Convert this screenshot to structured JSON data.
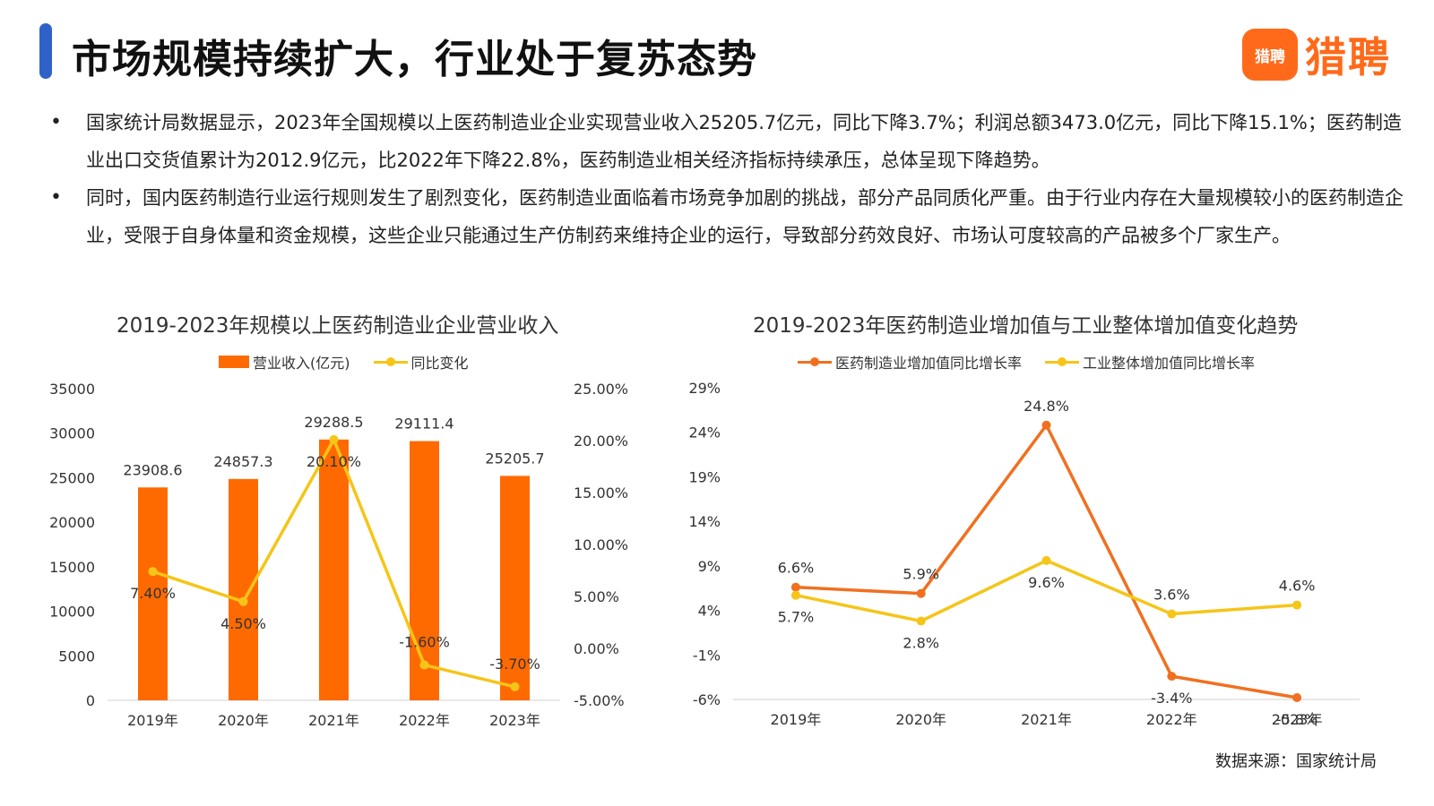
{
  "header": {
    "title": "市场规模持续扩大，行业处于复苏态势",
    "logo_box_text": "猎聘",
    "logo_text": "猎聘"
  },
  "bullets": [
    "国家统计局数据显示，2023年全国规模以上医药制造业企业实现营业收入25205.7亿元，同比下降3.7%；利润总额3473.0亿元，同比下降15.1%；医药制造业出口交货值累计为2012.9亿元，比2022年下降22.8%，医药制造业相关经济指标持续承压，总体呈现下降趋势。",
    "同时，国内医药制造行业运行规则发生了剧烈变化，医药制造业面临着市场竞争加剧的挑战，部分产品同质化严重。由于行业内存在大量规模较小的医药制造企业，受限于自身体量和资金规模，这些企业只能通过生产仿制药来维持企业的运行，导致部分药效良好、市场认可度较高的产品被多个厂家生产。"
  ],
  "source": "数据来源：国家统计局",
  "colors": {
    "accent_blue": "#2f62c8",
    "orange": "#ff6a00",
    "yellow": "#f5c518",
    "orange_line": "#f07020"
  },
  "chart_data": [
    {
      "type": "bar",
      "title": "2019-2023年规模以上医药制造业企业营业收入",
      "categories": [
        "2019年",
        "2020年",
        "2021年",
        "2022年",
        "2023年"
      ],
      "series": [
        {
          "name": "营业收入(亿元)",
          "type": "bar",
          "axis": "left",
          "values": [
            23908.6,
            24857.3,
            29288.5,
            29111.4,
            25205.7
          ],
          "labels": [
            "23908.6",
            "24857.3",
            "29288.5",
            "29111.4",
            "25205.7"
          ]
        },
        {
          "name": "同比变化",
          "type": "line",
          "axis": "right",
          "values": [
            7.4,
            4.5,
            20.1,
            -1.6,
            -3.7
          ],
          "labels": [
            "7.40%",
            "4.50%",
            "20.10%",
            "-1.60%",
            "-3.70%"
          ]
        }
      ],
      "y_left": {
        "range": [
          0,
          35000
        ],
        "ticks": [
          "35000",
          "30000",
          "25000",
          "20000",
          "15000",
          "10000",
          "5000",
          "0"
        ]
      },
      "y_right": {
        "range": [
          -5,
          25
        ],
        "ticks": [
          "25.00%",
          "20.00%",
          "15.00%",
          "10.00%",
          "5.00%",
          "0.00%",
          "-5.00%"
        ]
      },
      "legend_position": "top"
    },
    {
      "type": "line",
      "title": "2019-2023年医药制造业增加值与工业整体增加值变化趋势",
      "categories": [
        "2019年",
        "2020年",
        "2021年",
        "2022年",
        "2023年"
      ],
      "series": [
        {
          "name": "医药制造业增加值同比增长率",
          "values": [
            6.6,
            5.9,
            24.8,
            -3.4,
            -5.8
          ],
          "labels": [
            "6.6%",
            "5.9%",
            "24.8%",
            "-3.4%",
            "-5.8%"
          ]
        },
        {
          "name": "工业整体增加值同比增长率",
          "values": [
            5.7,
            2.8,
            9.6,
            3.6,
            4.6
          ],
          "labels": [
            "5.7%",
            "2.8%",
            "9.6%",
            "3.6%",
            "4.6%"
          ]
        }
      ],
      "y": {
        "range": [
          -6,
          29
        ],
        "ticks": [
          "29%",
          "24%",
          "19%",
          "14%",
          "9%",
          "4%",
          "-1%",
          "-6%"
        ]
      },
      "legend_position": "top"
    }
  ]
}
